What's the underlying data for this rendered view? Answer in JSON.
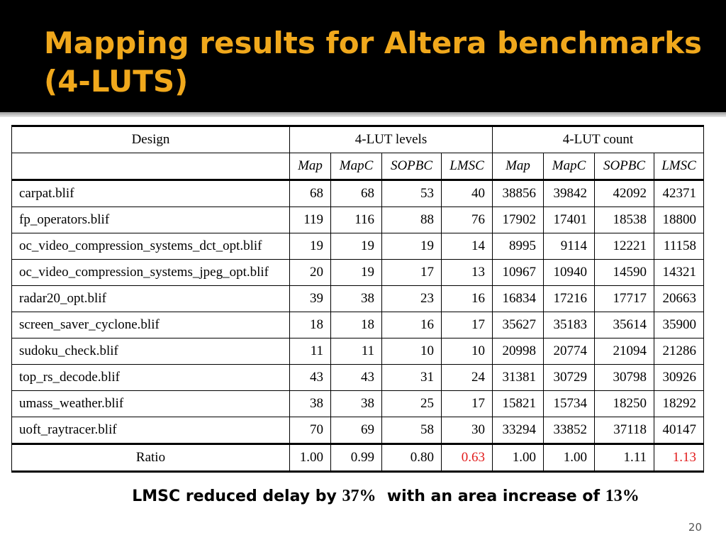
{
  "slide": {
    "title": "Mapping results for Altera benchmarks(4-LUTS)",
    "page_number": "20"
  },
  "table": {
    "header": {
      "design": "Design",
      "levels_group": "4-LUT levels",
      "count_group": "4-LUT count",
      "sub": [
        "Map",
        "MapC",
        "SOPBC",
        "LMSC",
        "Map",
        "MapC",
        "SOPBC",
        "LMSC"
      ]
    },
    "rows": [
      {
        "name": "carpat.blif",
        "vals": [
          "68",
          "68",
          "53",
          "40",
          "38856",
          "39842",
          "42092",
          "42371"
        ]
      },
      {
        "name": "fp_operators.blif",
        "vals": [
          "119",
          "116",
          "88",
          "76",
          "17902",
          "17401",
          "18538",
          "18800"
        ]
      },
      {
        "name": "oc_video_compression_systems_dct_opt.blif",
        "vals": [
          "19",
          "19",
          "19",
          "14",
          "8995",
          "9114",
          "12221",
          "11158"
        ]
      },
      {
        "name": "oc_video_compression_systems_jpeg_opt.blif",
        "vals": [
          "20",
          "19",
          "17",
          "13",
          "10967",
          "10940",
          "14590",
          "14321"
        ]
      },
      {
        "name": "radar20_opt.blif",
        "vals": [
          "39",
          "38",
          "23",
          "16",
          "16834",
          "17216",
          "17717",
          "20663"
        ]
      },
      {
        "name": "screen_saver_cyclone.blif",
        "vals": [
          "18",
          "18",
          "16",
          "17",
          "35627",
          "35183",
          "35614",
          "35900"
        ]
      },
      {
        "name": "sudoku_check.blif",
        "vals": [
          "11",
          "11",
          "10",
          "10",
          "20998",
          "20774",
          "21094",
          "21286"
        ]
      },
      {
        "name": "top_rs_decode.blif",
        "vals": [
          "43",
          "43",
          "31",
          "24",
          "31381",
          "30729",
          "30798",
          "30926"
        ]
      },
      {
        "name": "umass_weather.blif",
        "vals": [
          "38",
          "38",
          "25",
          "17",
          "15821",
          "15734",
          "18250",
          "18292"
        ]
      },
      {
        "name": "uoft_raytracer.blif",
        "vals": [
          "70",
          "69",
          "58",
          "30",
          "33294",
          "33852",
          "37118",
          "40147"
        ]
      }
    ],
    "ratio": {
      "label": "Ratio",
      "vals": [
        "1.00",
        "0.99",
        "0.80",
        "0.63",
        "1.00",
        "1.00",
        "1.11",
        "1.13"
      ]
    },
    "highlight_color": "#e21b1b"
  },
  "summary": {
    "part1": "LMSC reduced delay by ",
    "delay": "37%",
    "part2": "  with an area increase of ",
    "area": "13%"
  },
  "colors": {
    "title": "#f0a81c",
    "header_bg": "#000000"
  }
}
